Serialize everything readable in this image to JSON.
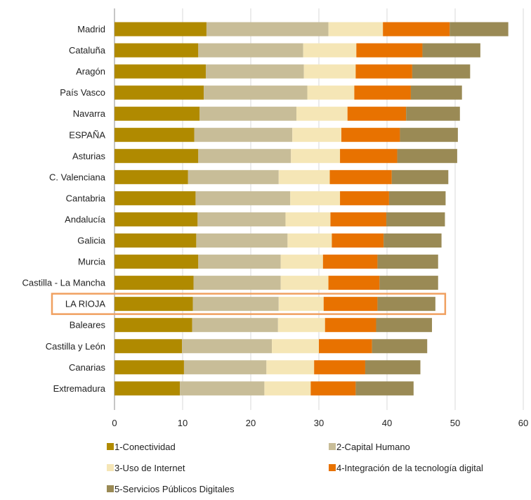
{
  "chart_data": {
    "type": "bar",
    "orientation": "horizontal",
    "stacked": true,
    "categories": [
      "Madrid",
      "Cataluña",
      "Aragón",
      "País Vasco",
      "Navarra",
      "ESPAÑA",
      "Asturias",
      "C. Valenciana",
      "Cantabria",
      "Andalucía",
      "Galicia",
      "Murcia",
      "Castilla - La Mancha",
      "LA RIOJA",
      "Baleares",
      "Castilla y León",
      "Canarias",
      "Extremadura"
    ],
    "highlighted_category": "LA RIOJA",
    "highlight_color": "#f0a060",
    "xlim": [
      0,
      60
    ],
    "xticks": [
      0,
      10,
      20,
      30,
      40,
      50,
      60
    ],
    "grid": "vertical",
    "legend_position": "bottom",
    "series": [
      {
        "name": "1-Conectividad",
        "color": "#b08a00",
        "values": [
          13.5,
          12.3,
          13.4,
          13.1,
          12.5,
          11.7,
          12.3,
          10.8,
          11.9,
          12.2,
          12.0,
          12.3,
          11.6,
          11.5,
          11.4,
          9.9,
          10.2,
          9.6
        ]
      },
      {
        "name": "2-Capital Humano",
        "color": "#c8bd98",
        "values": [
          17.9,
          15.4,
          14.4,
          15.2,
          14.2,
          14.4,
          13.6,
          13.3,
          13.9,
          12.9,
          13.4,
          12.1,
          12.8,
          12.6,
          12.6,
          13.2,
          12.1,
          12.4
        ]
      },
      {
        "name": "3-Uso de Internet",
        "color": "#f5e6b6",
        "values": [
          8.0,
          7.8,
          7.6,
          6.9,
          7.5,
          7.2,
          7.2,
          7.5,
          7.3,
          6.6,
          6.5,
          6.2,
          7.0,
          6.6,
          6.9,
          6.9,
          7.0,
          6.8
        ]
      },
      {
        "name": "4-Integración de la tecnología digital",
        "color": "#e87200",
        "values": [
          9.8,
          9.7,
          8.3,
          8.3,
          8.6,
          8.6,
          8.4,
          9.1,
          7.2,
          8.2,
          7.6,
          8.0,
          7.5,
          7.9,
          7.5,
          7.8,
          7.5,
          6.6
        ]
      },
      {
        "name": "5-Servicios Públicos Digitales",
        "color": "#9a8a55",
        "values": [
          8.6,
          8.5,
          8.5,
          7.5,
          7.9,
          8.5,
          8.8,
          8.3,
          8.3,
          8.6,
          8.5,
          8.9,
          8.6,
          8.5,
          8.2,
          8.1,
          8.1,
          8.5
        ]
      }
    ]
  }
}
